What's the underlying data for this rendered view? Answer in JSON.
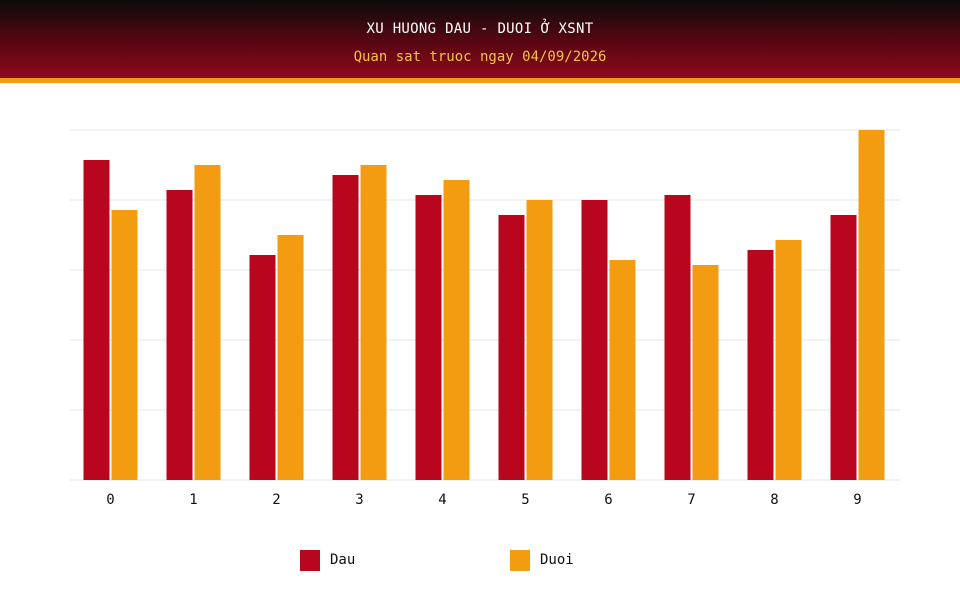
{
  "header": {
    "title": "XU HUONG DAU - DUOI Ở XSNT",
    "subtitle": "Quan sat truoc ngay 04/09/2026"
  },
  "colors": {
    "dau": "#b8061f",
    "duoi": "#f39c12",
    "grid": "#e6e6e6",
    "header_stripe": "#f39c12"
  },
  "legend": {
    "dau_label": "Dau",
    "duoi_label": "Duoi"
  },
  "chart_data": {
    "type": "bar",
    "categories": [
      "0",
      "1",
      "2",
      "3",
      "4",
      "5",
      "6",
      "7",
      "8",
      "9"
    ],
    "series": [
      {
        "name": "Dau",
        "values": [
          64,
          58,
          45,
          61,
          57,
          53,
          56,
          57,
          46,
          53
        ]
      },
      {
        "name": "Duoi",
        "values": [
          54,
          63,
          49,
          63,
          60,
          56,
          44,
          43,
          48,
          70
        ]
      }
    ],
    "title": "XU HUONG DAU - DUOI Ở XSNT",
    "subtitle": "Quan sat truoc ngay 04/09/2026",
    "xlabel": "",
    "ylabel": "",
    "ylim": [
      0,
      70
    ],
    "grid": true,
    "legend_position": "bottom"
  }
}
